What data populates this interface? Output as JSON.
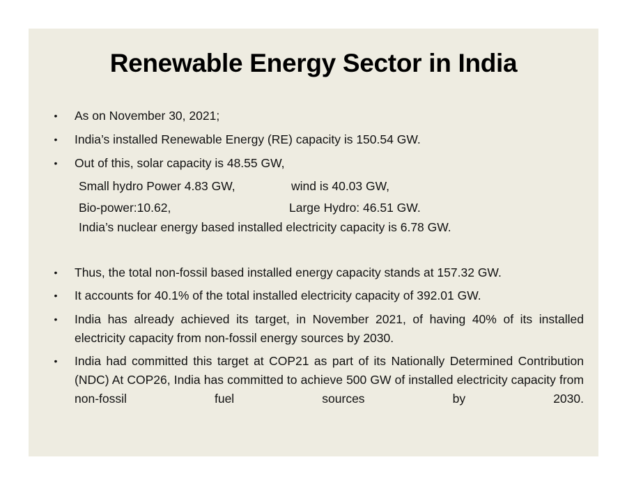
{
  "title": "Renewable Energy Sector in India",
  "bullets": [
    "As on November 30, 2021;",
    "India’s installed Renewable Energy (RE) capacity is 150.54 GW.",
    "Out of this,  solar capacity is 48.55 GW,",
    "Thus, the total non-fossil based installed energy capacity stands at 157.32 GW.",
    "It accounts for 40.1% of the total installed electricity capacity of 392.01 GW.",
    "India has already achieved its target, in November 2021, of having 40% of its installed electricity capacity from non-fossil energy sources by 2030.",
    " India had committed this target at COP21 as part of its Nationally Determined Contribution (NDC) At COP26, India has committed to achieve 500 GW of installed electricity capacity from non-fossil fuel sources by 2030."
  ],
  "sub_items": {
    "small_hydro": "Small hydro Power 4.83 GW,",
    "wind": "wind is 40.03 GW,",
    "bio_power": "Bio-power:10.62,",
    "large_hydro": "Large Hydro: 46.51 GW.",
    "nuclear": "India’s nuclear energy based installed electricity capacity is 6.78 GW."
  },
  "bullet_symbol": "•"
}
